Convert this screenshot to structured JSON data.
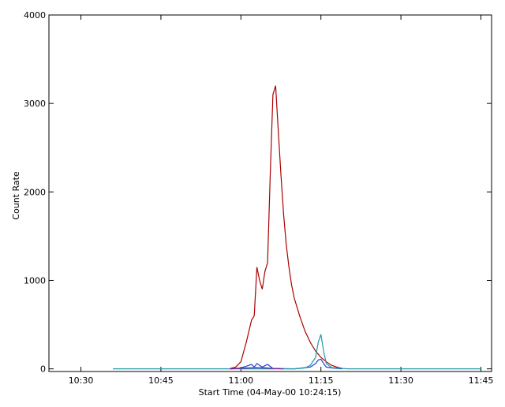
{
  "chart_data": {
    "type": "line",
    "title": "",
    "xlabel": "Start Time (04-May-00 10:24:15)",
    "ylabel": "Count Rate",
    "xlim": [
      "10:24",
      "11:47"
    ],
    "ylim": [
      0,
      4000
    ],
    "x_ticks": [
      "10:30",
      "10:45",
      "11:00",
      "11:15",
      "11:30",
      "11:45"
    ],
    "y_ticks": [
      0,
      1000,
      2000,
      3000,
      4000
    ],
    "grid": false,
    "series": [
      {
        "color": "#aa0000",
        "x": [
          "10:58",
          "10:59",
          "11:00",
          "11:01",
          "11:02",
          "11:02:30",
          "11:03",
          "11:03:30",
          "11:04",
          "11:04:30",
          "11:05",
          "11:05:30",
          "11:06",
          "11:06:30",
          "11:07",
          "11:07:30",
          "11:08",
          "11:08:30",
          "11:09",
          "11:09:30",
          "11:10",
          "11:11",
          "11:12",
          "11:13",
          "11:14",
          "11:15",
          "11:16",
          "11:17",
          "11:18",
          "11:19"
        ],
        "values": [
          5,
          20,
          80,
          300,
          550,
          600,
          1150,
          1000,
          900,
          1100,
          1200,
          2200,
          3100,
          3200,
          2700,
          2200,
          1750,
          1400,
          1150,
          950,
          800,
          600,
          430,
          300,
          200,
          130,
          80,
          40,
          20,
          5
        ]
      },
      {
        "color": "#2244cc",
        "x": [
          "10:58",
          "11:00",
          "11:01",
          "11:02",
          "11:02:30",
          "11:03",
          "11:04",
          "11:05",
          "11:06",
          "11:10",
          "11:13",
          "11:14",
          "11:14:30",
          "11:15",
          "11:15:30",
          "11:16",
          "11:17",
          "11:19"
        ],
        "values": [
          0,
          10,
          30,
          50,
          20,
          60,
          20,
          50,
          5,
          0,
          20,
          60,
          100,
          110,
          60,
          20,
          10,
          0
        ]
      },
      {
        "color": "#1e9aaa",
        "x": [
          "10:36",
          "11:10",
          "11:12",
          "11:13",
          "11:14",
          "11:14:30",
          "11:15",
          "11:15:30",
          "11:16",
          "11:17",
          "11:20",
          "11:45"
        ],
        "values": [
          0,
          0,
          10,
          40,
          130,
          300,
          390,
          200,
          60,
          15,
          0,
          0
        ]
      },
      {
        "color": "#7a1fa0",
        "x": [
          "10:58",
          "11:01",
          "11:03",
          "11:05",
          "11:06",
          "11:08"
        ],
        "values": [
          0,
          10,
          15,
          10,
          5,
          0
        ]
      }
    ]
  }
}
